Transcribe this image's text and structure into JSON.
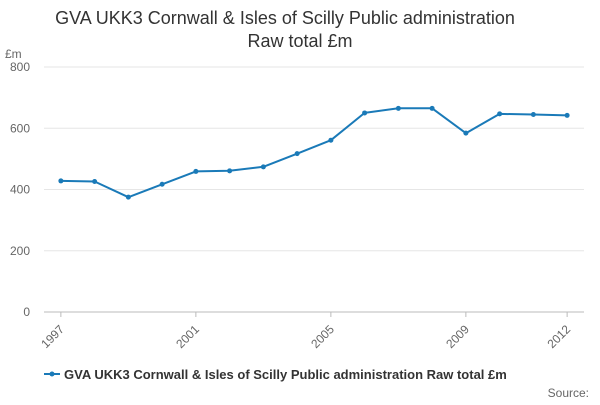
{
  "chart_data": {
    "type": "line",
    "title": "GVA UKK3 Cornwall & Isles of Scilly Public administration",
    "subtitle": "Raw total £m",
    "ylabel": "£m",
    "xlabel": "",
    "ylim": [
      0,
      800
    ],
    "y_ticks": [
      "0",
      "200",
      "400",
      "600",
      "800"
    ],
    "x_tick_labels": [
      "1997",
      "2001",
      "2005",
      "2009",
      "2012"
    ],
    "grid": true,
    "legend_position": "bottom",
    "series": [
      {
        "name": "GVA UKK3 Cornwall & Isles of Scilly Public administration Raw total £m",
        "color": "#1a7ab8",
        "x": [
          1997,
          1998,
          1999,
          2000,
          2001,
          2002,
          2003,
          2004,
          2005,
          2006,
          2007,
          2008,
          2009,
          2010,
          2011,
          2012
        ],
        "values": [
          428,
          426,
          375,
          417,
          459,
          461,
          474,
          517,
          561,
          650,
          665,
          665,
          584,
          647,
          645,
          642
        ]
      }
    ],
    "source_label": "Source:"
  }
}
